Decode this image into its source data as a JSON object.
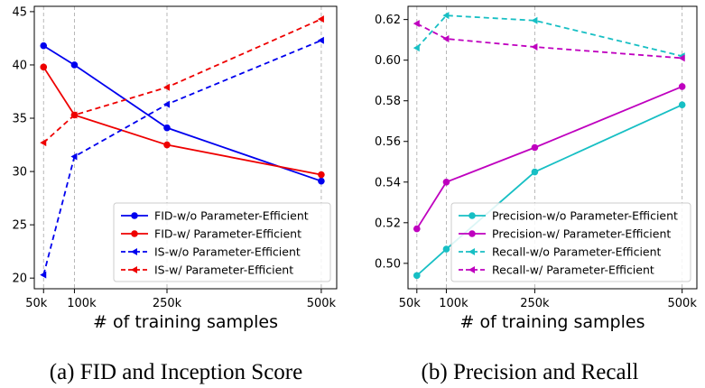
{
  "chart_data": [
    {
      "type": "line",
      "caption": "(a) FID and Inception Score",
      "xlabel": "# of training samples",
      "ylabel": "",
      "x": [
        50000,
        100000,
        250000,
        500000
      ],
      "xticks": [
        {
          "value": 50000,
          "label": "50k"
        },
        {
          "value": 100000,
          "label": "100k"
        },
        {
          "value": 250000,
          "label": "250k"
        },
        {
          "value": 500000,
          "label": "500k"
        }
      ],
      "xlim": [
        35000,
        525000
      ],
      "ylim": [
        19,
        45.5
      ],
      "yticks": [
        {
          "value": 20,
          "label": "20"
        },
        {
          "value": 25,
          "label": "25"
        },
        {
          "value": 30,
          "label": "30"
        },
        {
          "value": 35,
          "label": "35"
        },
        {
          "value": 40,
          "label": "40"
        },
        {
          "value": 45,
          "label": "45"
        }
      ],
      "grid": "vertical-dashed",
      "legend_position": "lower-right",
      "series": [
        {
          "name": "FID-w/o Parameter-Efficient",
          "color": "#0000ee",
          "line_style": "solid",
          "marker": "circle",
          "values": [
            41.8,
            40.0,
            34.1,
            29.1
          ]
        },
        {
          "name": "FID-w/ Parameter-Efficient",
          "color": "#ee0000",
          "line_style": "solid",
          "marker": "circle",
          "values": [
            39.8,
            35.3,
            32.5,
            29.7
          ]
        },
        {
          "name": "IS-w/o Parameter-Efficient",
          "color": "#0000ee",
          "line_style": "dashed",
          "marker": "triangle-left",
          "values": [
            20.3,
            31.4,
            36.3,
            42.3
          ]
        },
        {
          "name": "IS-w/ Parameter-Efficient",
          "color": "#ee0000",
          "line_style": "dashed",
          "marker": "triangle-left",
          "values": [
            32.7,
            35.3,
            37.9,
            44.3
          ]
        }
      ]
    },
    {
      "type": "line",
      "caption": "(b) Precision and Recall",
      "xlabel": "# of training samples",
      "ylabel": "",
      "x": [
        50000,
        100000,
        250000,
        500000
      ],
      "xticks": [
        {
          "value": 50000,
          "label": "50k"
        },
        {
          "value": 100000,
          "label": "100k"
        },
        {
          "value": 250000,
          "label": "250k"
        },
        {
          "value": 500000,
          "label": "500k"
        }
      ],
      "xlim": [
        35000,
        525000
      ],
      "ylim": [
        0.4875,
        0.6265
      ],
      "yticks": [
        {
          "value": 0.5,
          "label": "0.50"
        },
        {
          "value": 0.52,
          "label": "0.52"
        },
        {
          "value": 0.54,
          "label": "0.54"
        },
        {
          "value": 0.56,
          "label": "0.56"
        },
        {
          "value": 0.58,
          "label": "0.58"
        },
        {
          "value": 0.6,
          "label": "0.60"
        },
        {
          "value": 0.62,
          "label": "0.62"
        }
      ],
      "grid": "vertical-dashed",
      "legend_position": "lower-right",
      "series": [
        {
          "name": "Precision-w/o Parameter-Efficient",
          "color": "#17bfc4",
          "line_style": "solid",
          "marker": "circle",
          "values": [
            0.494,
            0.507,
            0.545,
            0.578
          ]
        },
        {
          "name": "Precision-w/ Parameter-Efficient",
          "color": "#bf00bf",
          "line_style": "solid",
          "marker": "circle",
          "values": [
            0.517,
            0.54,
            0.557,
            0.587
          ]
        },
        {
          "name": "Recall-w/o Parameter-Efficient",
          "color": "#17bfc4",
          "line_style": "dashed",
          "marker": "triangle-left",
          "values": [
            0.606,
            0.622,
            0.6195,
            0.602
          ]
        },
        {
          "name": "Recall-w/ Parameter-Efficient",
          "color": "#bf00bf",
          "line_style": "dashed",
          "marker": "triangle-left",
          "values": [
            0.618,
            0.6105,
            0.6065,
            0.601
          ]
        }
      ]
    }
  ]
}
